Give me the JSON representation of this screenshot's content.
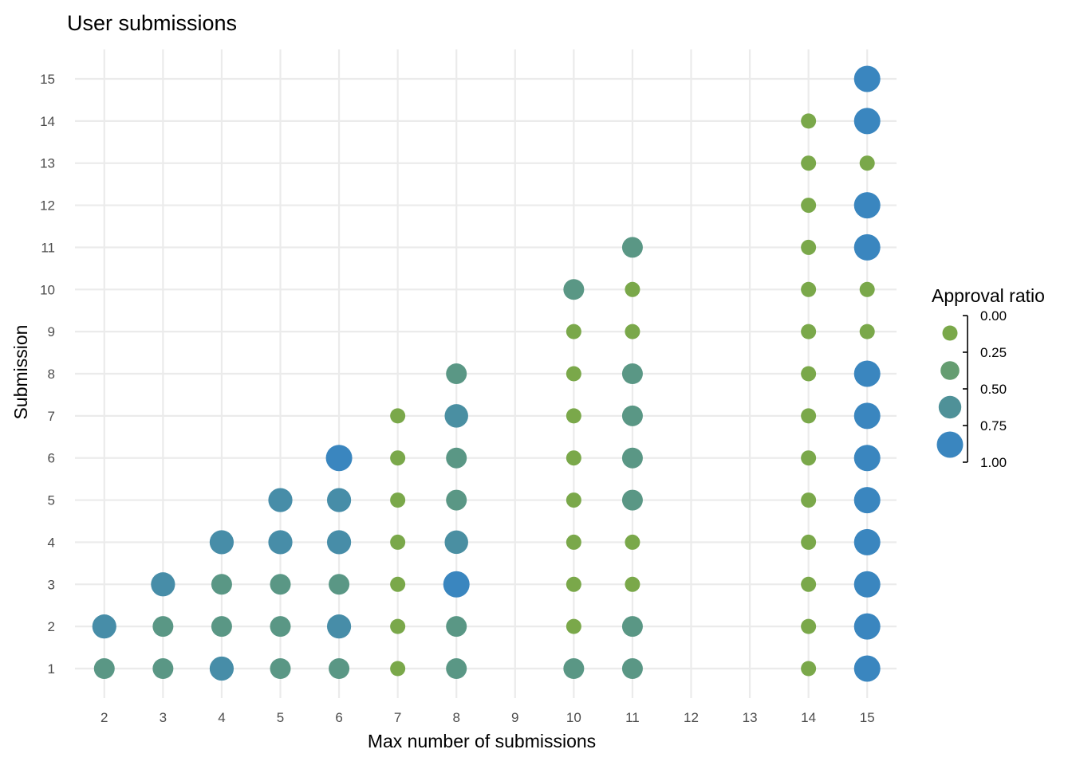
{
  "chart_data": {
    "type": "scatter",
    "title": "User submissions",
    "xlabel": "Max number of submissions",
    "ylabel": "Submission",
    "x_ticks": [
      2,
      3,
      4,
      5,
      6,
      7,
      8,
      9,
      10,
      11,
      12,
      13,
      14,
      15
    ],
    "y_ticks": [
      1,
      2,
      3,
      4,
      5,
      6,
      7,
      8,
      9,
      10,
      11,
      12,
      13,
      14,
      15
    ],
    "xlim": [
      1.5,
      15.5
    ],
    "ylim": [
      0.3,
      15.7
    ],
    "grid": true,
    "legend": {
      "title": "Approval ratio",
      "placement": "right",
      "breaks": [
        0.0,
        0.25,
        0.5,
        0.75,
        1.0
      ],
      "labels": [
        "0.00",
        "0.25",
        "0.50",
        "0.75",
        "1.00"
      ],
      "color_low": "#7aa84a",
      "color_high": "#3a86bf",
      "encodes": [
        "color",
        "size"
      ]
    },
    "points": [
      {
        "x": 2,
        "y": 1,
        "ratio": 0.5
      },
      {
        "x": 2,
        "y": 2,
        "ratio": 0.8
      },
      {
        "x": 3,
        "y": 1,
        "ratio": 0.5
      },
      {
        "x": 3,
        "y": 2,
        "ratio": 0.5
      },
      {
        "x": 3,
        "y": 3,
        "ratio": 0.8
      },
      {
        "x": 4,
        "y": 1,
        "ratio": 0.8
      },
      {
        "x": 4,
        "y": 2,
        "ratio": 0.5
      },
      {
        "x": 4,
        "y": 3,
        "ratio": 0.5
      },
      {
        "x": 4,
        "y": 4,
        "ratio": 0.8
      },
      {
        "x": 5,
        "y": 1,
        "ratio": 0.5
      },
      {
        "x": 5,
        "y": 2,
        "ratio": 0.5
      },
      {
        "x": 5,
        "y": 3,
        "ratio": 0.5
      },
      {
        "x": 5,
        "y": 4,
        "ratio": 0.8
      },
      {
        "x": 5,
        "y": 5,
        "ratio": 0.8
      },
      {
        "x": 6,
        "y": 1,
        "ratio": 0.5
      },
      {
        "x": 6,
        "y": 2,
        "ratio": 0.8
      },
      {
        "x": 6,
        "y": 3,
        "ratio": 0.5
      },
      {
        "x": 6,
        "y": 4,
        "ratio": 0.8
      },
      {
        "x": 6,
        "y": 5,
        "ratio": 0.8
      },
      {
        "x": 6,
        "y": 6,
        "ratio": 1.0
      },
      {
        "x": 7,
        "y": 1,
        "ratio": 0.0
      },
      {
        "x": 7,
        "y": 2,
        "ratio": 0.0
      },
      {
        "x": 7,
        "y": 3,
        "ratio": 0.0
      },
      {
        "x": 7,
        "y": 4,
        "ratio": 0.0
      },
      {
        "x": 7,
        "y": 5,
        "ratio": 0.0
      },
      {
        "x": 7,
        "y": 6,
        "ratio": 0.0
      },
      {
        "x": 7,
        "y": 7,
        "ratio": 0.0
      },
      {
        "x": 8,
        "y": 1,
        "ratio": 0.5
      },
      {
        "x": 8,
        "y": 2,
        "ratio": 0.5
      },
      {
        "x": 8,
        "y": 3,
        "ratio": 1.0
      },
      {
        "x": 8,
        "y": 4,
        "ratio": 0.75
      },
      {
        "x": 8,
        "y": 5,
        "ratio": 0.5
      },
      {
        "x": 8,
        "y": 6,
        "ratio": 0.5
      },
      {
        "x": 8,
        "y": 7,
        "ratio": 0.75
      },
      {
        "x": 8,
        "y": 8,
        "ratio": 0.5
      },
      {
        "x": 10,
        "y": 1,
        "ratio": 0.5
      },
      {
        "x": 10,
        "y": 2,
        "ratio": 0.0
      },
      {
        "x": 10,
        "y": 3,
        "ratio": 0.0
      },
      {
        "x": 10,
        "y": 4,
        "ratio": 0.0
      },
      {
        "x": 10,
        "y": 5,
        "ratio": 0.0
      },
      {
        "x": 10,
        "y": 6,
        "ratio": 0.0
      },
      {
        "x": 10,
        "y": 7,
        "ratio": 0.0
      },
      {
        "x": 10,
        "y": 8,
        "ratio": 0.0
      },
      {
        "x": 10,
        "y": 9,
        "ratio": 0.0
      },
      {
        "x": 10,
        "y": 10,
        "ratio": 0.5
      },
      {
        "x": 11,
        "y": 1,
        "ratio": 0.5
      },
      {
        "x": 11,
        "y": 2,
        "ratio": 0.5
      },
      {
        "x": 11,
        "y": 3,
        "ratio": 0.0
      },
      {
        "x": 11,
        "y": 4,
        "ratio": 0.0
      },
      {
        "x": 11,
        "y": 5,
        "ratio": 0.5
      },
      {
        "x": 11,
        "y": 6,
        "ratio": 0.5
      },
      {
        "x": 11,
        "y": 7,
        "ratio": 0.5
      },
      {
        "x": 11,
        "y": 8,
        "ratio": 0.5
      },
      {
        "x": 11,
        "y": 9,
        "ratio": 0.0
      },
      {
        "x": 11,
        "y": 10,
        "ratio": 0.0
      },
      {
        "x": 11,
        "y": 11,
        "ratio": 0.5
      },
      {
        "x": 14,
        "y": 1,
        "ratio": 0.0
      },
      {
        "x": 14,
        "y": 2,
        "ratio": 0.0
      },
      {
        "x": 14,
        "y": 3,
        "ratio": 0.0
      },
      {
        "x": 14,
        "y": 4,
        "ratio": 0.0
      },
      {
        "x": 14,
        "y": 5,
        "ratio": 0.0
      },
      {
        "x": 14,
        "y": 6,
        "ratio": 0.0
      },
      {
        "x": 14,
        "y": 7,
        "ratio": 0.0
      },
      {
        "x": 14,
        "y": 8,
        "ratio": 0.0
      },
      {
        "x": 14,
        "y": 9,
        "ratio": 0.0
      },
      {
        "x": 14,
        "y": 10,
        "ratio": 0.0
      },
      {
        "x": 14,
        "y": 11,
        "ratio": 0.0
      },
      {
        "x": 14,
        "y": 12,
        "ratio": 0.0
      },
      {
        "x": 14,
        "y": 13,
        "ratio": 0.0
      },
      {
        "x": 14,
        "y": 14,
        "ratio": 0.0
      },
      {
        "x": 15,
        "y": 1,
        "ratio": 1.0
      },
      {
        "x": 15,
        "y": 2,
        "ratio": 1.0
      },
      {
        "x": 15,
        "y": 3,
        "ratio": 1.0
      },
      {
        "x": 15,
        "y": 4,
        "ratio": 1.0
      },
      {
        "x": 15,
        "y": 5,
        "ratio": 1.0
      },
      {
        "x": 15,
        "y": 6,
        "ratio": 1.0
      },
      {
        "x": 15,
        "y": 7,
        "ratio": 1.0
      },
      {
        "x": 15,
        "y": 8,
        "ratio": 1.0
      },
      {
        "x": 15,
        "y": 9,
        "ratio": 0.0
      },
      {
        "x": 15,
        "y": 10,
        "ratio": 0.0
      },
      {
        "x": 15,
        "y": 11,
        "ratio": 1.0
      },
      {
        "x": 15,
        "y": 12,
        "ratio": 1.0
      },
      {
        "x": 15,
        "y": 13,
        "ratio": 0.0
      },
      {
        "x": 15,
        "y": 14,
        "ratio": 1.0
      },
      {
        "x": 15,
        "y": 15,
        "ratio": 1.0
      }
    ]
  }
}
